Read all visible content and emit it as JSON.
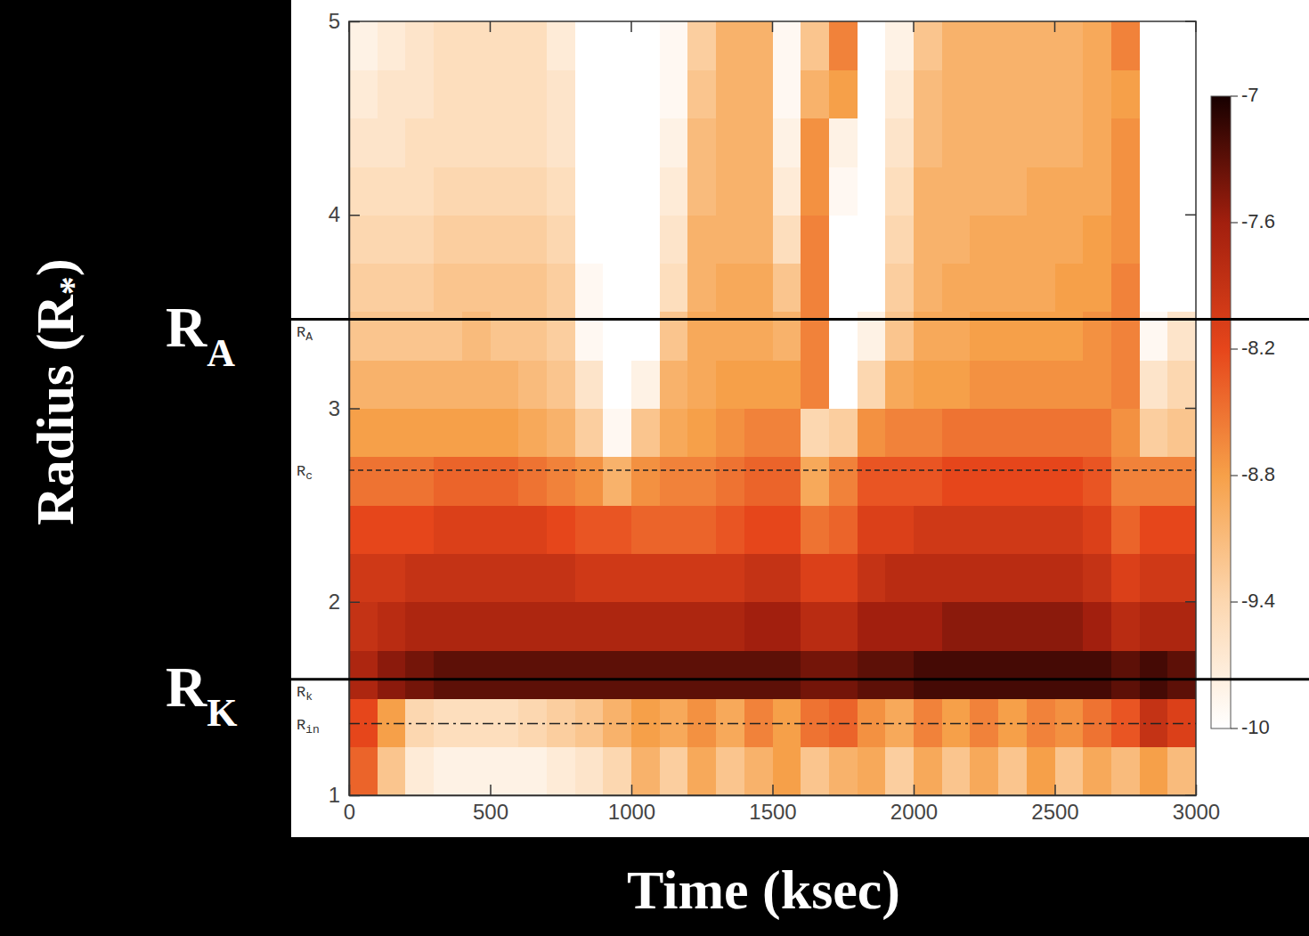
{
  "chart_data": {
    "type": "heatmap",
    "xlabel": "Time (ksec)",
    "ylabel": "Radius (R",
    "ylabel_sub": "*",
    "ylabel_end": ")",
    "xlim": [
      0,
      3000
    ],
    "ylim": [
      1,
      5
    ],
    "xticks": [
      0,
      500,
      1000,
      1500,
      2000,
      2500,
      3000
    ],
    "yticks": [
      1,
      2,
      3,
      4,
      5
    ],
    "zlim": [
      -10,
      -7
    ],
    "zticks": [
      -7,
      -7.6,
      -8.2,
      -8.8,
      -9.4,
      -10
    ],
    "x": [
      50,
      150,
      250,
      350,
      450,
      550,
      650,
      750,
      850,
      950,
      1050,
      1150,
      1250,
      1350,
      1450,
      1550,
      1650,
      1750,
      1850,
      1950,
      2050,
      2150,
      2250,
      2350,
      2450,
      2550,
      2650,
      2750,
      2850,
      2950
    ],
    "y": [
      1.125,
      1.375,
      1.625,
      1.875,
      2.125,
      2.375,
      2.625,
      2.875,
      3.125,
      3.375,
      3.625,
      3.875,
      4.125,
      4.375,
      4.625,
      4.875
    ],
    "values": [
      [
        -8.4,
        -9.2,
        -9.7,
        -9.8,
        -9.8,
        -9.8,
        -9.8,
        -9.7,
        -9.6,
        -9.4,
        -9.0,
        -9.3,
        -8.9,
        -9.2,
        -9.0,
        -8.8,
        -9.2,
        -9.0,
        -8.9,
        -9.3,
        -8.9,
        -9.2,
        -8.9,
        -9.2,
        -8.8,
        -9.2,
        -8.9,
        -9.1,
        -8.8,
        -9.1
      ],
      [
        -8.2,
        -8.8,
        -9.4,
        -9.5,
        -9.5,
        -9.5,
        -9.4,
        -9.3,
        -9.2,
        -9.0,
        -8.8,
        -8.9,
        -8.7,
        -8.9,
        -8.6,
        -8.8,
        -8.5,
        -8.4,
        -8.7,
        -8.9,
        -8.6,
        -8.8,
        -8.6,
        -8.8,
        -8.6,
        -8.7,
        -8.5,
        -8.3,
        -7.9,
        -8.1
      ],
      [
        -7.7,
        -7.5,
        -7.4,
        -7.3,
        -7.3,
        -7.3,
        -7.3,
        -7.3,
        -7.3,
        -7.3,
        -7.3,
        -7.3,
        -7.3,
        -7.3,
        -7.3,
        -7.3,
        -7.4,
        -7.4,
        -7.3,
        -7.3,
        -7.2,
        -7.2,
        -7.2,
        -7.2,
        -7.2,
        -7.2,
        -7.2,
        -7.3,
        -7.2,
        -7.3
      ],
      [
        -7.9,
        -7.8,
        -7.7,
        -7.7,
        -7.7,
        -7.7,
        -7.7,
        -7.7,
        -7.7,
        -7.7,
        -7.7,
        -7.7,
        -7.7,
        -7.7,
        -7.6,
        -7.6,
        -7.8,
        -7.8,
        -7.6,
        -7.6,
        -7.6,
        -7.5,
        -7.5,
        -7.5,
        -7.5,
        -7.5,
        -7.6,
        -7.8,
        -7.7,
        -7.7
      ],
      [
        -8.0,
        -8.0,
        -7.9,
        -7.9,
        -7.9,
        -7.9,
        -7.9,
        -7.9,
        -8.0,
        -8.0,
        -8.0,
        -8.0,
        -8.0,
        -8.0,
        -7.9,
        -7.9,
        -8.1,
        -8.1,
        -7.9,
        -7.8,
        -7.8,
        -7.8,
        -7.8,
        -7.8,
        -7.8,
        -7.8,
        -7.9,
        -8.1,
        -8.0,
        -8.0
      ],
      [
        -8.2,
        -8.2,
        -8.2,
        -8.1,
        -8.1,
        -8.1,
        -8.1,
        -8.2,
        -8.3,
        -8.3,
        -8.4,
        -8.4,
        -8.4,
        -8.3,
        -8.2,
        -8.2,
        -8.5,
        -8.4,
        -8.1,
        -8.1,
        -8.0,
        -8.0,
        -8.0,
        -8.0,
        -8.0,
        -8.0,
        -8.1,
        -8.4,
        -8.2,
        -8.2
      ],
      [
        -8.5,
        -8.5,
        -8.5,
        -8.4,
        -8.4,
        -8.4,
        -8.5,
        -8.6,
        -8.7,
        -9.0,
        -8.7,
        -8.6,
        -8.6,
        -8.5,
        -8.4,
        -8.4,
        -8.9,
        -8.6,
        -8.3,
        -8.3,
        -8.3,
        -8.2,
        -8.2,
        -8.2,
        -8.2,
        -8.2,
        -8.3,
        -8.6,
        -8.6,
        -8.6
      ],
      [
        -8.8,
        -8.8,
        -8.8,
        -8.8,
        -8.8,
        -8.8,
        -8.9,
        -9.0,
        -9.3,
        -9.9,
        -9.2,
        -8.9,
        -8.8,
        -8.7,
        -8.6,
        -8.6,
        -9.4,
        -9.3,
        -8.7,
        -8.6,
        -8.6,
        -8.5,
        -8.5,
        -8.5,
        -8.5,
        -8.5,
        -8.5,
        -8.7,
        -9.3,
        -9.2
      ],
      [
        -9.0,
        -9.0,
        -9.0,
        -9.0,
        -9.0,
        -9.0,
        -9.1,
        -9.2,
        -9.6,
        -10.0,
        -9.8,
        -9.0,
        -8.9,
        -8.8,
        -8.8,
        -8.8,
        -8.6,
        -10.0,
        -9.4,
        -8.9,
        -8.8,
        -8.8,
        -8.7,
        -8.7,
        -8.7,
        -8.7,
        -8.7,
        -8.6,
        -9.6,
        -9.4
      ],
      [
        -9.2,
        -9.2,
        -9.2,
        -9.2,
        -9.1,
        -9.2,
        -9.2,
        -9.3,
        -9.9,
        -10.0,
        -10.0,
        -9.2,
        -8.9,
        -8.9,
        -8.9,
        -9.0,
        -8.6,
        -10.0,
        -9.8,
        -9.2,
        -8.9,
        -8.9,
        -8.8,
        -8.8,
        -8.8,
        -8.8,
        -8.7,
        -8.6,
        -9.9,
        -9.6
      ],
      [
        -9.3,
        -9.3,
        -9.3,
        -9.2,
        -9.2,
        -9.2,
        -9.2,
        -9.3,
        -9.9,
        -10.0,
        -10.0,
        -9.5,
        -9.0,
        -8.9,
        -8.9,
        -9.2,
        -8.6,
        -10.0,
        -10.0,
        -9.3,
        -9.0,
        -8.9,
        -8.9,
        -8.9,
        -8.9,
        -8.8,
        -8.8,
        -8.6,
        -10.0,
        -10.0
      ],
      [
        -9.4,
        -9.4,
        -9.4,
        -9.3,
        -9.3,
        -9.3,
        -9.3,
        -9.4,
        -10.0,
        -10.0,
        -10.0,
        -9.6,
        -9.0,
        -9.0,
        -9.0,
        -9.5,
        -8.6,
        -10.0,
        -10.0,
        -9.4,
        -9.0,
        -9.0,
        -8.9,
        -8.9,
        -8.9,
        -8.9,
        -8.8,
        -8.7,
        -10.0,
        -10.0
      ],
      [
        -9.5,
        -9.5,
        -9.5,
        -9.4,
        -9.4,
        -9.4,
        -9.4,
        -9.5,
        -10.0,
        -10.0,
        -10.0,
        -9.7,
        -9.1,
        -9.0,
        -9.0,
        -9.7,
        -8.7,
        -9.9,
        -10.0,
        -9.5,
        -9.0,
        -9.0,
        -9.0,
        -9.0,
        -8.9,
        -8.9,
        -8.9,
        -8.7,
        -10.0,
        -10.0
      ],
      [
        -9.6,
        -9.6,
        -9.5,
        -9.5,
        -9.5,
        -9.5,
        -9.5,
        -9.6,
        -10.0,
        -10.0,
        -10.0,
        -9.8,
        -9.1,
        -9.0,
        -9.0,
        -9.8,
        -8.7,
        -9.8,
        -10.0,
        -9.6,
        -9.1,
        -9.0,
        -9.0,
        -9.0,
        -9.0,
        -9.0,
        -8.9,
        -8.7,
        -10.0,
        -10.0
      ],
      [
        -9.7,
        -9.6,
        -9.6,
        -9.5,
        -9.5,
        -9.5,
        -9.5,
        -9.6,
        -10.0,
        -10.0,
        -10.0,
        -9.9,
        -9.2,
        -9.0,
        -9.0,
        -9.9,
        -9.0,
        -8.8,
        -10.0,
        -9.7,
        -9.1,
        -9.0,
        -9.0,
        -9.0,
        -9.0,
        -9.0,
        -8.9,
        -8.8,
        -10.0,
        -10.0
      ],
      [
        -9.8,
        -9.7,
        -9.6,
        -9.5,
        -9.5,
        -9.5,
        -9.5,
        -9.7,
        -10.0,
        -10.0,
        -10.0,
        -9.9,
        -9.3,
        -9.0,
        -9.0,
        -9.9,
        -9.2,
        -8.6,
        -10.0,
        -9.8,
        -9.2,
        -9.0,
        -9.0,
        -9.0,
        -9.0,
        -9.0,
        -8.9,
        -8.6,
        -10.0,
        -10.0
      ]
    ],
    "reference_lines": [
      {
        "y": 3.46,
        "line_style": "solid",
        "label": "R",
        "sub": "A",
        "outer_label": "R",
        "outer_sub": "A"
      },
      {
        "y": 2.68,
        "line_style": "dashed",
        "label": "R",
        "sub": "c"
      },
      {
        "y": 1.6,
        "line_style": "solid",
        "label": "R",
        "sub": "k",
        "outer_label": "R",
        "outer_sub": "K"
      },
      {
        "y": 1.37,
        "line_style": "dashdot",
        "label": "R",
        "sub": "in"
      }
    ]
  }
}
